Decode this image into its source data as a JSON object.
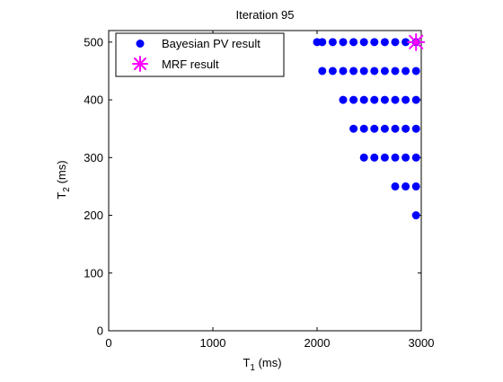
{
  "chart_data": {
    "type": "scatter",
    "title": "Iteration 95",
    "xlabel": {
      "main": "T",
      "sub": "1",
      "unit": " (ms)"
    },
    "ylabel": {
      "main": "T",
      "sub": "2",
      "unit": " (ms)"
    },
    "xlim": [
      0,
      3000
    ],
    "ylim": [
      0,
      520
    ],
    "xticks": [
      0,
      1000,
      2000,
      3000
    ],
    "yticks": [
      0,
      100,
      200,
      300,
      400,
      500
    ],
    "grid": false,
    "legend_position": "top-left",
    "series": [
      {
        "name": "Bayesian PV result",
        "marker": "dot",
        "color": "#0000ff",
        "points": [
          [
            2000,
            500
          ],
          [
            2050,
            500
          ],
          [
            2150,
            500
          ],
          [
            2250,
            500
          ],
          [
            2350,
            500
          ],
          [
            2450,
            500
          ],
          [
            2550,
            500
          ],
          [
            2650,
            500
          ],
          [
            2750,
            500
          ],
          [
            2850,
            500
          ],
          [
            2950,
            500
          ],
          [
            2050,
            450
          ],
          [
            2150,
            450
          ],
          [
            2250,
            450
          ],
          [
            2350,
            450
          ],
          [
            2450,
            450
          ],
          [
            2550,
            450
          ],
          [
            2650,
            450
          ],
          [
            2750,
            450
          ],
          [
            2850,
            450
          ],
          [
            2950,
            450
          ],
          [
            2250,
            400
          ],
          [
            2350,
            400
          ],
          [
            2450,
            400
          ],
          [
            2550,
            400
          ],
          [
            2650,
            400
          ],
          [
            2750,
            400
          ],
          [
            2850,
            400
          ],
          [
            2950,
            400
          ],
          [
            2350,
            350
          ],
          [
            2450,
            350
          ],
          [
            2550,
            350
          ],
          [
            2650,
            350
          ],
          [
            2750,
            350
          ],
          [
            2850,
            350
          ],
          [
            2950,
            350
          ],
          [
            2450,
            300
          ],
          [
            2550,
            300
          ],
          [
            2650,
            300
          ],
          [
            2750,
            300
          ],
          [
            2850,
            300
          ],
          [
            2950,
            300
          ],
          [
            2750,
            250
          ],
          [
            2850,
            250
          ],
          [
            2950,
            250
          ],
          [
            2950,
            200
          ]
        ]
      },
      {
        "name": "MRF result",
        "marker": "asterisk",
        "color": "#ff00ff",
        "points": [
          [
            2950,
            500
          ]
        ]
      }
    ]
  }
}
